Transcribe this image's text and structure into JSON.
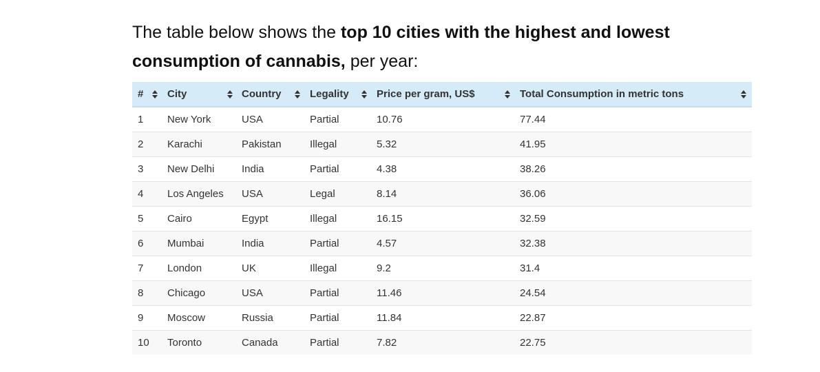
{
  "intro": {
    "prefix": "The table below shows the ",
    "bold": "top 10 cities with the highest and lowest consumption of cannabis,",
    "suffix": " per year:"
  },
  "table": {
    "headers": [
      "#",
      "City",
      "Country",
      "Legality",
      "Price per gram, US$",
      "Total Consumption in metric tons"
    ],
    "rows": [
      [
        "1",
        "New York",
        "USA",
        "Partial",
        "10.76",
        "77.44"
      ],
      [
        "2",
        "Karachi",
        "Pakistan",
        "Illegal",
        "5.32",
        "41.95"
      ],
      [
        "3",
        "New Delhi",
        "India",
        "Partial",
        "4.38",
        "38.26"
      ],
      [
        "4",
        "Los Angeles",
        "USA",
        "Legal",
        "8.14",
        "36.06"
      ],
      [
        "5",
        "Cairo",
        "Egypt",
        "Illegal",
        "16.15",
        "32.59"
      ],
      [
        "6",
        "Mumbai",
        "India",
        "Partial",
        "4.57",
        "32.38"
      ],
      [
        "7",
        "London",
        "UK",
        "Illegal",
        "9.2",
        "31.4"
      ],
      [
        "8",
        "Chicago",
        "USA",
        "Partial",
        "11.46",
        "24.54"
      ],
      [
        "9",
        "Moscow",
        "Russia",
        "Partial",
        "11.84",
        "22.87"
      ],
      [
        "10",
        "Toronto",
        "Canada",
        "Partial",
        "7.82",
        "22.75"
      ]
    ]
  },
  "colors": {
    "header_bg": "#d5ebf7",
    "row_alt_bg": "#f8f8f8",
    "border": "#e3e3e3"
  },
  "icons": {
    "sort": "sort-arrows-icon"
  }
}
